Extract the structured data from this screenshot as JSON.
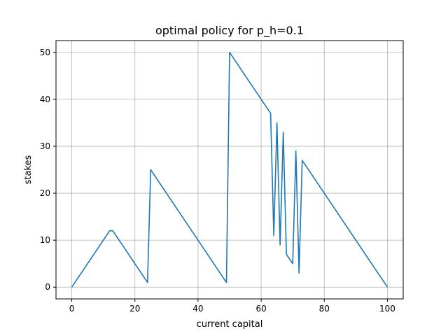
{
  "chart_data": {
    "type": "line",
    "title": "optimal policy for p_h=0.1",
    "xlabel": "current capital",
    "ylabel": "stakes",
    "xlim": [
      -5,
      105
    ],
    "ylim": [
      -2.5,
      52.5
    ],
    "xticks": [
      0,
      20,
      40,
      60,
      80,
      100
    ],
    "yticks": [
      0,
      10,
      20,
      30,
      40,
      50
    ],
    "grid": true,
    "series": [
      {
        "color": "#1f77b4",
        "x": [
          0,
          12,
          13,
          24,
          25,
          49,
          50,
          63,
          64,
          65,
          66,
          67,
          68,
          70,
          71,
          72,
          73,
          100
        ],
        "y": [
          0,
          12,
          12,
          1,
          25,
          1,
          50,
          37,
          11,
          35,
          9,
          33,
          7,
          5,
          29,
          3,
          27,
          0
        ]
      }
    ]
  }
}
